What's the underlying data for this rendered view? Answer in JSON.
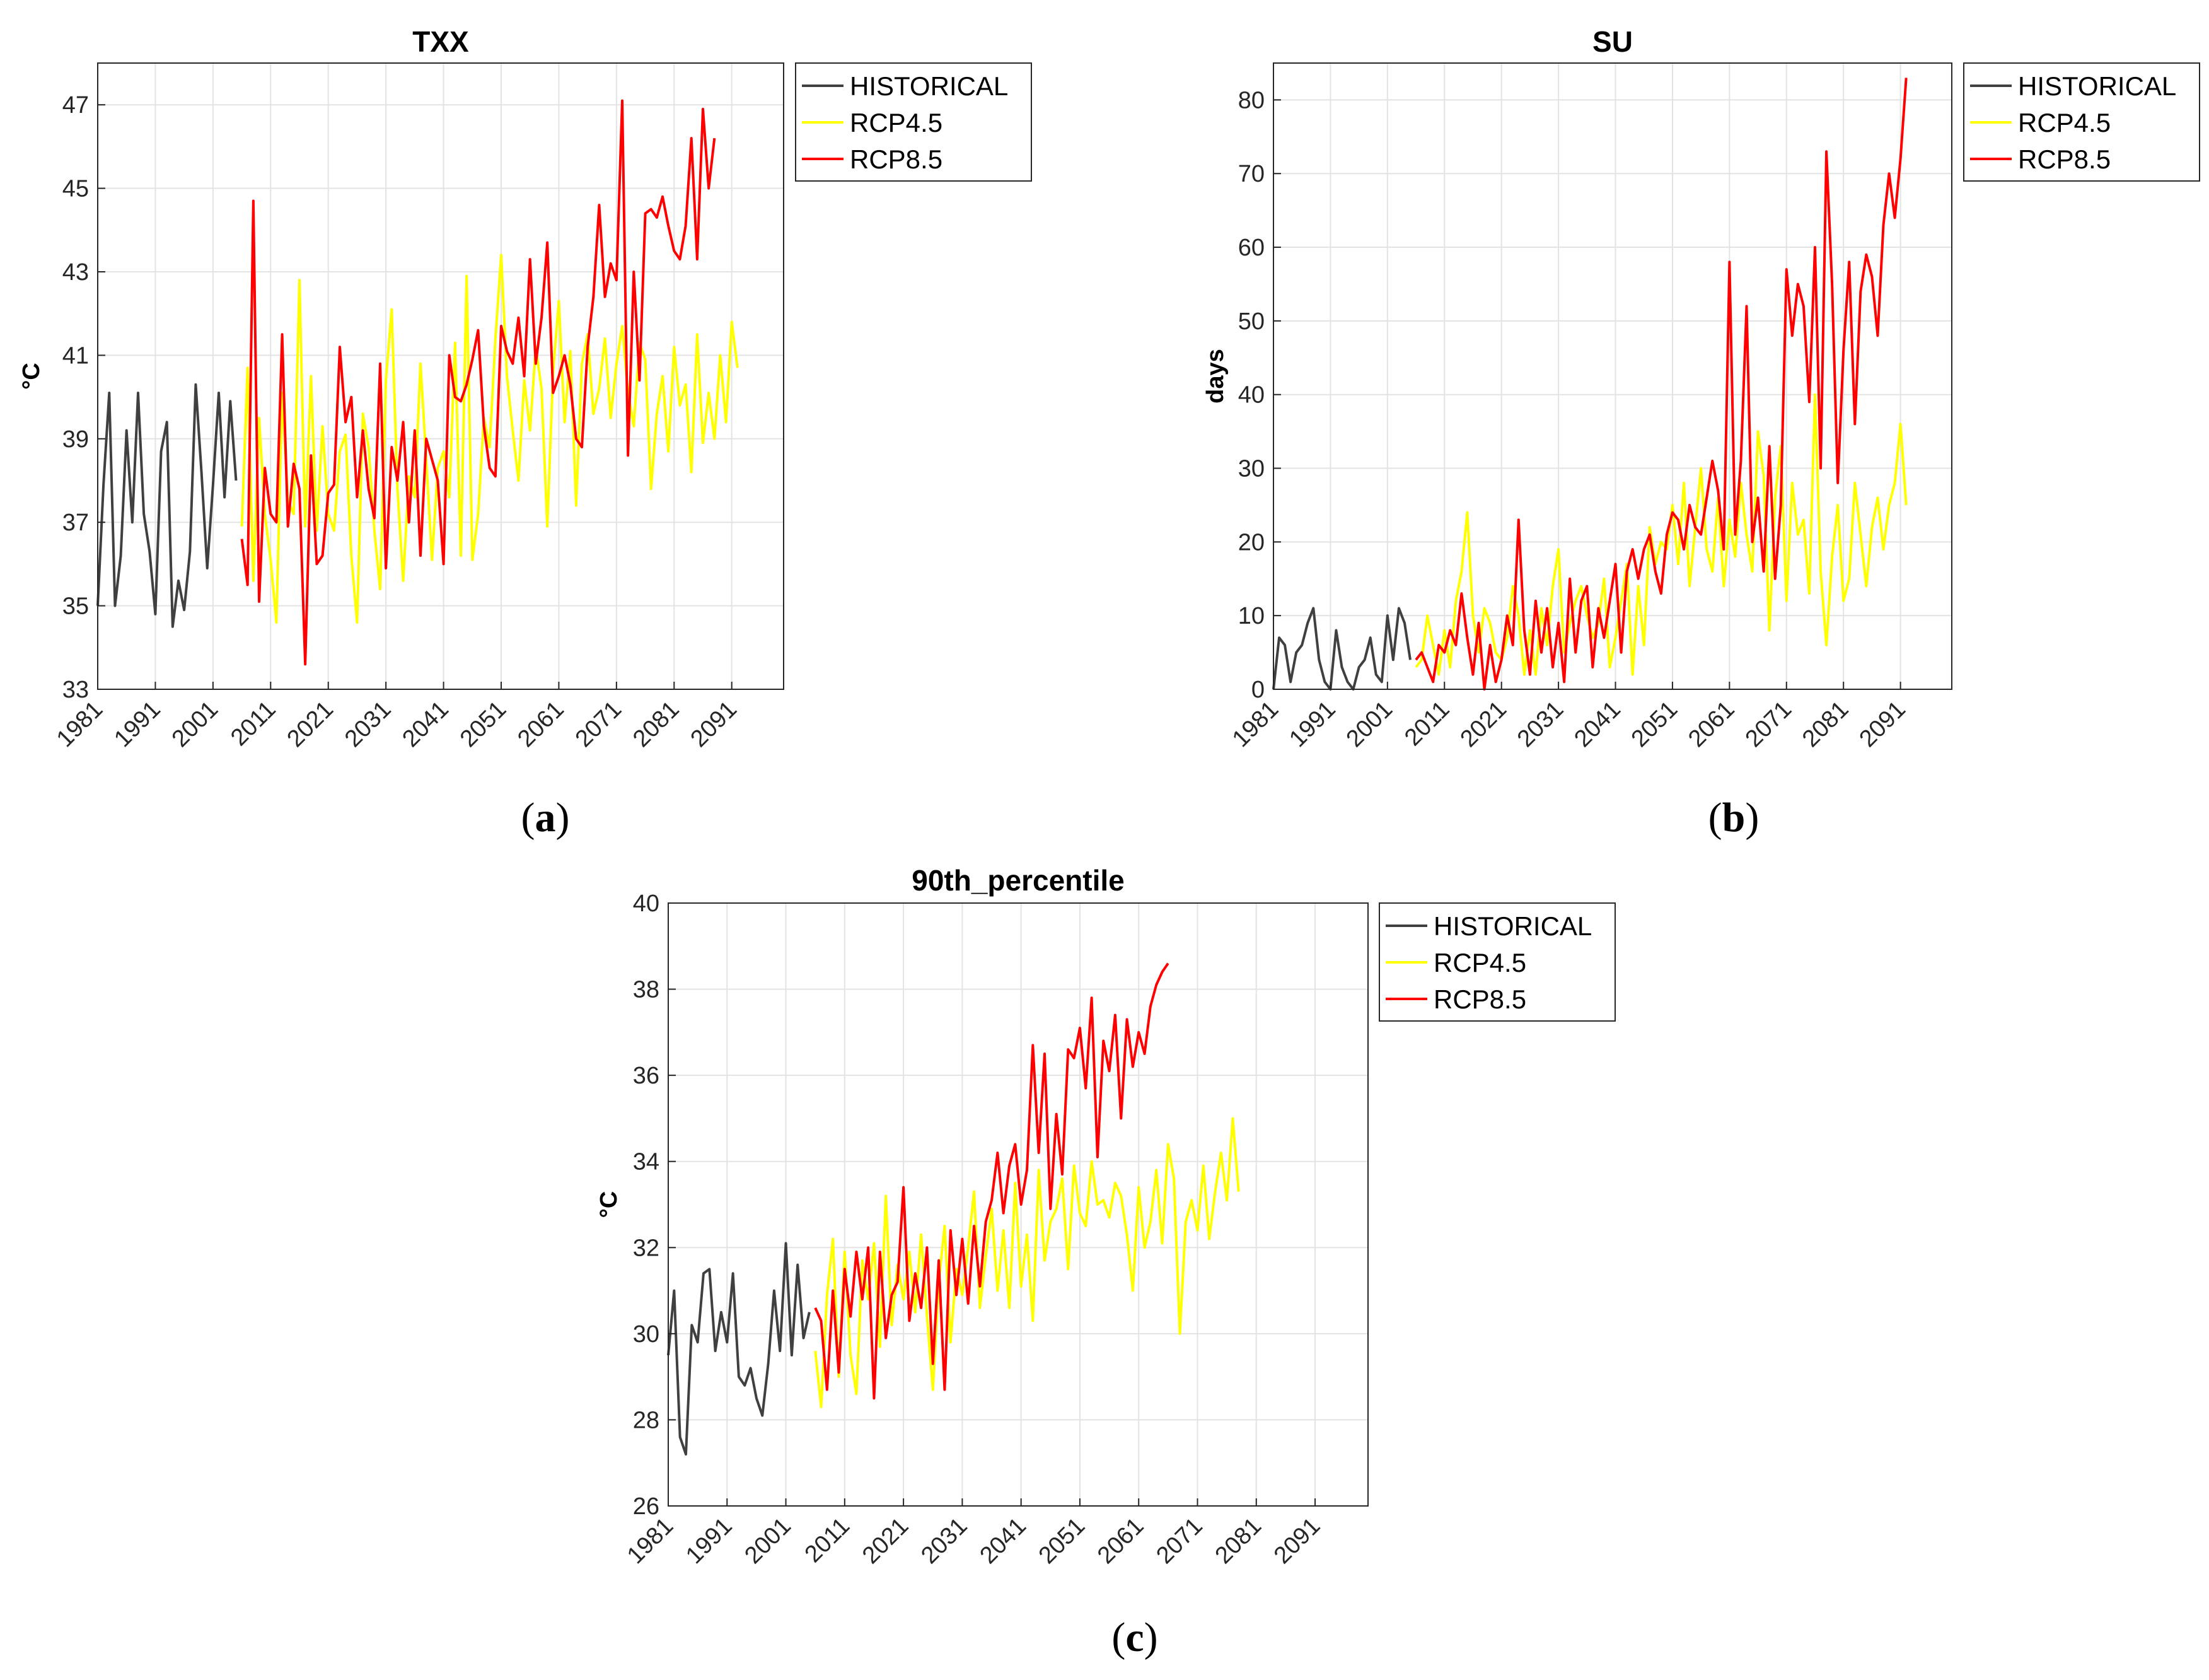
{
  "chart_data": [
    {
      "id": "a",
      "type": "line",
      "title": "TXX",
      "ylabel": "°C",
      "xlabel": "",
      "xlim": [
        1981,
        2100
      ],
      "ylim": [
        33,
        48
      ],
      "yticks": [
        33,
        35,
        37,
        39,
        41,
        43,
        45,
        47
      ],
      "xticks": [
        1981,
        1991,
        2001,
        2011,
        2021,
        2031,
        2041,
        2051,
        2061,
        2071,
        2081,
        2091
      ],
      "grid": true,
      "legend_position": "top-right",
      "panel_label": "a",
      "series": [
        {
          "name": "HISTORICAL",
          "color": "#404040",
          "x_start": 1981,
          "values": [
            35.0,
            37.9,
            40.1,
            35.0,
            36.2,
            39.2,
            37.0,
            40.1,
            37.2,
            36.3,
            34.8,
            38.7,
            39.4,
            34.5,
            35.6,
            34.9,
            36.3,
            40.3,
            38.2,
            35.9,
            37.9,
            40.1,
            37.6,
            39.9,
            38.0
          ]
        },
        {
          "name": "RCP4.5",
          "color": "#ffff00",
          "x_start": 2006,
          "values": [
            36.9,
            40.7,
            35.6,
            39.5,
            37.2,
            36.1,
            34.6,
            40.1,
            37.5,
            37.2,
            42.8,
            36.9,
            40.5,
            36.8,
            39.3,
            37.2,
            36.8,
            38.7,
            39.1,
            36.2,
            34.6,
            39.6,
            38.8,
            36.8,
            35.4,
            40.4,
            42.1,
            37.8,
            35.6,
            38.1,
            37.6,
            40.8,
            38.5,
            36.1,
            38.3,
            38.7,
            37.6,
            41.3,
            36.2,
            42.9,
            36.1,
            37.2,
            39.5,
            38.8,
            41.4,
            43.4,
            40.5,
            39.2,
            38.0,
            40.4,
            39.2,
            41.2,
            40.2,
            36.9,
            40.6,
            42.3,
            39.4,
            41.1,
            37.4,
            40.8,
            41.5,
            39.6,
            40.2,
            41.4,
            39.5,
            40.8,
            41.7,
            40.1,
            39.3,
            41.3,
            40.9,
            37.8,
            39.6,
            40.5,
            38.7,
            41.2,
            39.8,
            40.3,
            38.2,
            41.5,
            38.9,
            40.1,
            39.0,
            41.0,
            39.4,
            41.8,
            40.7
          ]
        },
        {
          "name": "RCP8.5",
          "color": "#ff0000",
          "x_start": 2006,
          "values": [
            36.6,
            35.5,
            44.7,
            35.1,
            38.3,
            37.2,
            37.0,
            41.5,
            36.9,
            38.4,
            37.8,
            33.6,
            38.6,
            36.0,
            36.2,
            37.7,
            37.9,
            41.2,
            39.4,
            40.0,
            37.6,
            39.2,
            37.8,
            37.1,
            40.8,
            35.9,
            38.8,
            38.0,
            39.4,
            37.0,
            39.2,
            36.2,
            39.0,
            38.5,
            38.0,
            36.0,
            41.0,
            40.0,
            39.9,
            40.3,
            40.9,
            41.6,
            39.3,
            38.3,
            38.1,
            41.7,
            41.1,
            40.8,
            41.9,
            40.5,
            43.3,
            40.8,
            41.9,
            43.7,
            40.1,
            40.5,
            41.0,
            40.3,
            39.0,
            38.8,
            41.2,
            42.4,
            44.6,
            42.4,
            43.2,
            42.8,
            47.1,
            38.6,
            43.0,
            40.4,
            44.4,
            44.5,
            44.3,
            44.8,
            44.1,
            43.5,
            43.3,
            44.1,
            46.2,
            43.3,
            46.9,
            45.0,
            46.2
          ]
        }
      ]
    },
    {
      "id": "b",
      "type": "line",
      "title": "SU",
      "ylabel": "days",
      "xlabel": "",
      "xlim": [
        1981,
        2100
      ],
      "ylim": [
        0,
        85
      ],
      "yticks": [
        0,
        10,
        20,
        30,
        40,
        50,
        60,
        70,
        80
      ],
      "xticks": [
        1981,
        1991,
        2001,
        2011,
        2021,
        2031,
        2041,
        2051,
        2061,
        2071,
        2081,
        2091
      ],
      "grid": true,
      "legend_position": "top-right",
      "panel_label": "b",
      "series": [
        {
          "name": "HISTORICAL",
          "color": "#404040",
          "x_start": 1981,
          "values": [
            0,
            7,
            6,
            1,
            5,
            6,
            9,
            11,
            4,
            1,
            0,
            8,
            3,
            1,
            0,
            3,
            4,
            7,
            2,
            1,
            10,
            4,
            11,
            9,
            4
          ]
        },
        {
          "name": "RCP4.5",
          "color": "#ffff00",
          "x_start": 2006,
          "values": [
            3,
            4,
            10,
            6,
            2,
            8,
            3,
            12,
            16,
            24,
            10,
            5,
            11,
            9,
            5,
            4,
            7,
            14,
            10,
            2,
            8,
            2,
            11,
            6,
            14,
            19,
            5,
            9,
            12,
            14,
            10,
            7,
            9,
            15,
            3,
            7,
            12,
            17,
            2,
            14,
            6,
            22,
            17,
            20,
            19,
            25,
            17,
            28,
            14,
            22,
            30,
            19,
            16,
            26,
            14,
            23,
            18,
            28,
            21,
            16,
            35,
            29,
            8,
            26,
            33,
            12,
            28,
            21,
            23,
            13,
            40,
            16,
            6,
            18,
            25,
            12,
            15,
            28,
            21,
            14,
            22,
            26,
            19,
            25,
            28,
            36,
            25
          ]
        },
        {
          "name": "RCP8.5",
          "color": "#ff0000",
          "x_start": 2006,
          "values": [
            4,
            5,
            3,
            1,
            6,
            5,
            8,
            6,
            13,
            7,
            2,
            9,
            0,
            6,
            1,
            4,
            10,
            6,
            23,
            8,
            2,
            12,
            5,
            11,
            3,
            9,
            1,
            15,
            5,
            12,
            14,
            3,
            11,
            7,
            12,
            17,
            5,
            16,
            19,
            15,
            19,
            21,
            16,
            13,
            21,
            24,
            23,
            19,
            25,
            22,
            21,
            26,
            31,
            27,
            19,
            58,
            21,
            31,
            52,
            20,
            26,
            16,
            33,
            15,
            25,
            57,
            48,
            55,
            52,
            39,
            60,
            30,
            73,
            55,
            28,
            46,
            58,
            36,
            54,
            59,
            56,
            48,
            63,
            70,
            64,
            72,
            83
          ]
        }
      ]
    },
    {
      "id": "c",
      "type": "line",
      "title": "90th_percentile",
      "ylabel": "°C",
      "xlabel": "",
      "xlim": [
        1981,
        2100
      ],
      "ylim": [
        26,
        40
      ],
      "yticks": [
        26,
        28,
        30,
        32,
        34,
        36,
        38,
        40
      ],
      "xticks": [
        1981,
        1991,
        2001,
        2011,
        2021,
        2031,
        2041,
        2051,
        2061,
        2071,
        2081,
        2091
      ],
      "grid": true,
      "legend_position": "top-right",
      "panel_label": "c",
      "series": [
        {
          "name": "HISTORICAL",
          "color": "#404040",
          "x_start": 1981,
          "values": [
            29.5,
            31.0,
            27.6,
            27.2,
            30.2,
            29.8,
            31.4,
            31.5,
            29.6,
            30.5,
            29.8,
            31.4,
            29.0,
            28.8,
            29.2,
            28.5,
            28.1,
            29.3,
            31.0,
            29.6,
            32.1,
            29.5,
            31.6,
            29.9,
            30.5
          ]
        },
        {
          "name": "RCP4.5",
          "color": "#ffff00",
          "x_start": 2006,
          "values": [
            29.6,
            28.3,
            30.9,
            32.2,
            29.0,
            31.9,
            29.5,
            28.6,
            31.7,
            30.8,
            32.1,
            29.7,
            33.2,
            30.2,
            31.6,
            30.8,
            31.9,
            30.5,
            32.3,
            30.4,
            28.7,
            31.2,
            32.5,
            29.8,
            31.5,
            30.9,
            32.0,
            33.3,
            30.6,
            31.8,
            32.9,
            31.0,
            32.4,
            30.6,
            33.5,
            31.1,
            32.3,
            30.3,
            33.8,
            31.7,
            32.6,
            32.9,
            33.6,
            31.5,
            33.9,
            32.8,
            32.5,
            34.0,
            33.0,
            33.1,
            32.7,
            33.5,
            33.2,
            32.3,
            31.0,
            33.4,
            32.0,
            32.6,
            33.8,
            32.1,
            34.4,
            33.6,
            30.0,
            32.6,
            33.1,
            32.4,
            33.9,
            32.2,
            33.3,
            34.2,
            33.1,
            35.0,
            33.3
          ]
        },
        {
          "name": "RCP8.5",
          "color": "#ff0000",
          "x_start": 2006,
          "values": [
            30.6,
            30.3,
            28.7,
            31.0,
            29.1,
            31.5,
            30.4,
            31.9,
            30.8,
            32.0,
            28.5,
            31.9,
            29.9,
            30.9,
            31.2,
            33.4,
            30.3,
            31.4,
            30.6,
            32.0,
            29.3,
            31.7,
            28.7,
            32.4,
            30.9,
            32.2,
            30.7,
            32.5,
            31.1,
            32.6,
            33.1,
            34.2,
            32.8,
            33.9,
            34.4,
            33.0,
            33.8,
            36.7,
            34.2,
            36.5,
            32.9,
            35.1,
            33.7,
            36.6,
            36.4,
            37.1,
            35.7,
            37.8,
            34.1,
            36.8,
            36.1,
            37.4,
            35.0,
            37.3,
            36.2,
            37.0,
            36.5,
            37.6,
            38.1,
            38.4,
            38.6
          ]
        }
      ]
    }
  ]
}
